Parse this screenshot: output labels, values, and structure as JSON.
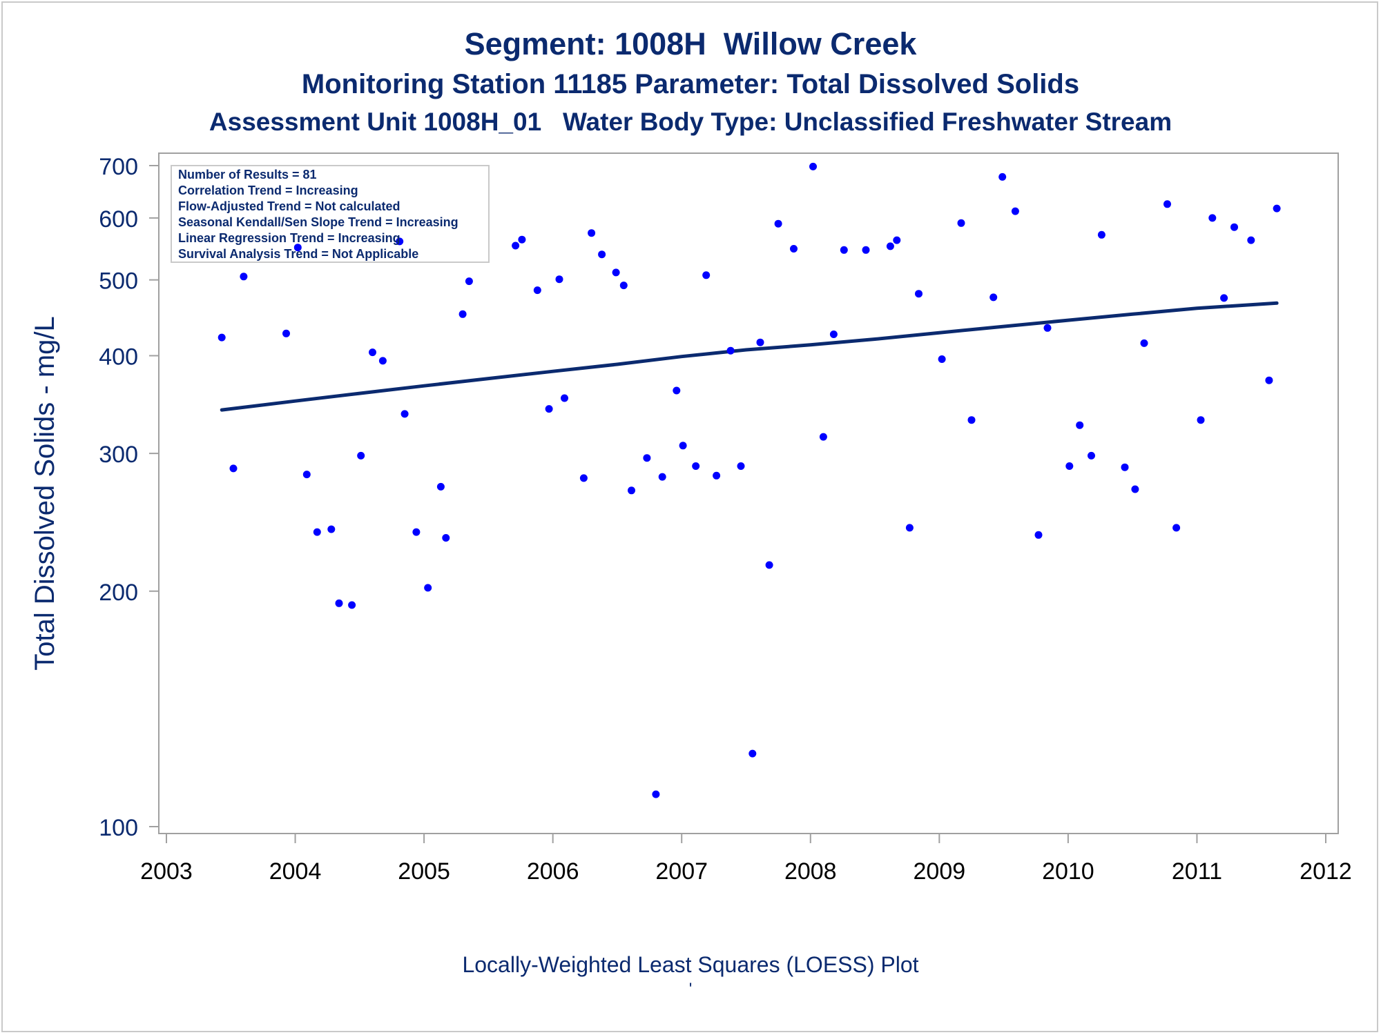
{
  "titles": {
    "line1": "Segment: 1008H  Willow Creek",
    "line2": "Monitoring Station 11185 Parameter: Total Dissolved Solids",
    "line3": "Assessment Unit 1008H_01   Water Body Type: Unclassified Freshwater Stream"
  },
  "stats_box": {
    "lines": [
      "Number of Results = 81",
      "Correlation Trend = Increasing",
      "Flow-Adjusted Trend = Not calculated",
      "Seasonal Kendall/Sen Slope Trend = Increasing",
      "Linear Regression Trend = Increasing",
      "Survival Analysis Trend = Not Applicable"
    ]
  },
  "footnote": "Locally-Weighted Least Squares (LOESS) Plot",
  "footnote_mark": "'",
  "colors": {
    "text": "#0b2a6f",
    "points": "#0000ff",
    "trend_line": "#0b2a6f",
    "axis": "#a0a0a0"
  },
  "chart_data": {
    "type": "scatter",
    "xlabel": "",
    "ylabel": "Total Dissolved Solids - mg/L",
    "x_scale": "linear (years)",
    "y_scale": "log",
    "xlim": [
      2003,
      2012
    ],
    "ylim": [
      100,
      700
    ],
    "x_ticks": [
      2003,
      2004,
      2005,
      2006,
      2007,
      2008,
      2009,
      2010,
      2011,
      2012
    ],
    "y_ticks": [
      100,
      200,
      300,
      400,
      500,
      600,
      700
    ],
    "grid": false,
    "series": [
      {
        "kind": "points",
        "points": [
          [
            2003.43,
            422
          ],
          [
            2003.52,
            287
          ],
          [
            2003.6,
            505
          ],
          [
            2003.93,
            427
          ],
          [
            2004.02,
            550
          ],
          [
            2004.09,
            282
          ],
          [
            2004.17,
            238
          ],
          [
            2004.28,
            240
          ],
          [
            2004.34,
            193
          ],
          [
            2004.44,
            192
          ],
          [
            2004.51,
            298
          ],
          [
            2004.6,
            404
          ],
          [
            2004.68,
            394
          ],
          [
            2004.81,
            560
          ],
          [
            2004.85,
            337
          ],
          [
            2004.94,
            238
          ],
          [
            2005.03,
            202
          ],
          [
            2005.13,
            272
          ],
          [
            2005.17,
            234
          ],
          [
            2005.3,
            452
          ],
          [
            2005.35,
            498
          ],
          [
            2005.71,
            553
          ],
          [
            2005.76,
            563
          ],
          [
            2005.88,
            485
          ],
          [
            2005.97,
            342
          ],
          [
            2006.05,
            501
          ],
          [
            2006.09,
            353
          ],
          [
            2006.24,
            279
          ],
          [
            2006.3,
            574
          ],
          [
            2006.38,
            539
          ],
          [
            2006.49,
            511
          ],
          [
            2006.55,
            492
          ],
          [
            2006.61,
            269
          ],
          [
            2006.73,
            296
          ],
          [
            2006.8,
            110
          ],
          [
            2006.85,
            280
          ],
          [
            2006.96,
            361
          ],
          [
            2007.01,
            307
          ],
          [
            2007.11,
            289
          ],
          [
            2007.19,
            507
          ],
          [
            2007.27,
            281
          ],
          [
            2007.38,
            406
          ],
          [
            2007.46,
            289
          ],
          [
            2007.55,
            124
          ],
          [
            2007.61,
            416
          ],
          [
            2007.68,
            216
          ],
          [
            2007.75,
            590
          ],
          [
            2007.87,
            548
          ],
          [
            2008.02,
            698
          ],
          [
            2008.1,
            315
          ],
          [
            2008.18,
            426
          ],
          [
            2008.26,
            546
          ],
          [
            2008.43,
            546
          ],
          [
            2008.62,
            552
          ],
          [
            2008.67,
            562
          ],
          [
            2008.77,
            241
          ],
          [
            2008.84,
            480
          ],
          [
            2009.02,
            396
          ],
          [
            2009.17,
            591
          ],
          [
            2009.25,
            331
          ],
          [
            2009.42,
            475
          ],
          [
            2009.49,
            677
          ],
          [
            2009.59,
            612
          ],
          [
            2009.77,
            236
          ],
          [
            2009.84,
            434
          ],
          [
            2010.01,
            289
          ],
          [
            2010.09,
            326
          ],
          [
            2010.18,
            298
          ],
          [
            2010.26,
            571
          ],
          [
            2010.44,
            288
          ],
          [
            2010.52,
            270
          ],
          [
            2010.59,
            415
          ],
          [
            2010.77,
            625
          ],
          [
            2010.84,
            241
          ],
          [
            2011.03,
            331
          ],
          [
            2011.12,
            600
          ],
          [
            2011.21,
            474
          ],
          [
            2011.29,
            584
          ],
          [
            2011.42,
            562
          ],
          [
            2011.56,
            372
          ],
          [
            2011.62,
            617
          ]
        ]
      },
      {
        "kind": "line",
        "points": [
          [
            2003.43,
            341
          ],
          [
            2004.0,
            350
          ],
          [
            2004.5,
            358
          ],
          [
            2005.0,
            366
          ],
          [
            2005.5,
            374
          ],
          [
            2006.0,
            382
          ],
          [
            2006.5,
            390
          ],
          [
            2007.0,
            399
          ],
          [
            2007.5,
            407
          ],
          [
            2008.0,
            413
          ],
          [
            2008.5,
            420
          ],
          [
            2009.0,
            428
          ],
          [
            2009.5,
            436
          ],
          [
            2010.0,
            444
          ],
          [
            2010.5,
            452
          ],
          [
            2011.0,
            460
          ],
          [
            2011.62,
            467
          ]
        ]
      }
    ]
  }
}
